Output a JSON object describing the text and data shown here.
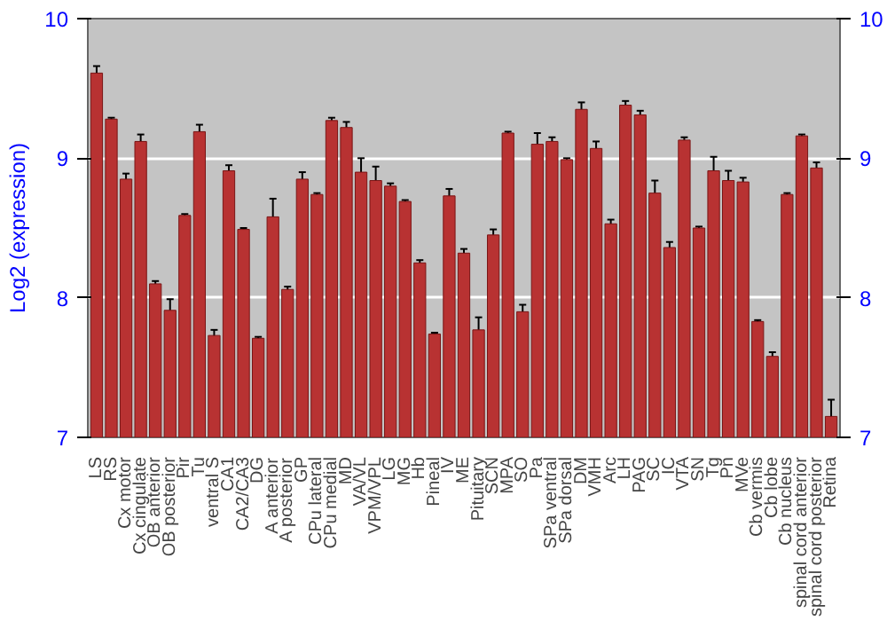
{
  "chart_data": {
    "type": "bar",
    "ylabel": "Log2 (expression)",
    "categories": [
      "LS",
      "RS",
      "Cx motor",
      "Cx cingulate",
      "OB anterior",
      "OB posterior",
      "Pir",
      "Tu",
      "ventral S",
      "CA1",
      "CA2/CA3",
      "DG",
      "A anterior",
      "A posterior",
      "GP",
      "CPu lateral",
      "CPu medial",
      "MD",
      "VA/VL",
      "VPM/VPL",
      "LG",
      "MG",
      "Hb",
      "Pineal",
      "IV",
      "ME",
      "Pituitary",
      "SCN",
      "MPA",
      "SO",
      "Pa",
      "SPa ventral",
      "SPa dorsal",
      "DM",
      "VMH",
      "Arc",
      "LH",
      "PAG",
      "SC",
      "IC",
      "VTA",
      "SN",
      "Tg",
      "Pn",
      "MVe",
      "Cb vermis",
      "Cb lobe",
      "Cb nucleus",
      "spinal cord anterior",
      "spinal cord posterior",
      "Retina"
    ],
    "values": [
      9.61,
      9.28,
      8.85,
      9.12,
      8.1,
      7.91,
      8.59,
      9.19,
      7.73,
      8.91,
      8.49,
      7.71,
      8.58,
      8.06,
      8.85,
      8.74,
      9.27,
      9.22,
      8.9,
      8.84,
      8.8,
      8.69,
      8.25,
      7.74,
      8.73,
      8.32,
      7.77,
      8.45,
      9.18,
      7.9,
      9.1,
      9.12,
      8.99,
      9.35,
      9.07,
      8.53,
      9.38,
      9.31,
      8.75,
      8.36,
      9.13,
      8.5,
      8.91,
      8.84,
      8.83,
      7.83,
      7.58,
      8.74,
      9.16,
      8.93,
      7.15
    ],
    "errors": [
      0.05,
      0.01,
      0.04,
      0.05,
      0.02,
      0.08,
      0.01,
      0.05,
      0.04,
      0.04,
      0.01,
      0.01,
      0.13,
      0.02,
      0.05,
      0.01,
      0.02,
      0.04,
      0.1,
      0.1,
      0.02,
      0.01,
      0.02,
      0.01,
      0.05,
      0.03,
      0.09,
      0.04,
      0.01,
      0.05,
      0.08,
      0.03,
      0.01,
      0.05,
      0.05,
      0.03,
      0.03,
      0.03,
      0.09,
      0.04,
      0.02,
      0.01,
      0.1,
      0.07,
      0.03,
      0.01,
      0.03,
      0.01,
      0.01,
      0.04,
      0.12
    ],
    "color": "#b83232",
    "ylim": [
      7,
      10
    ],
    "yticks": [
      7,
      8,
      9,
      10
    ],
    "y2lim": [
      7,
      10
    ],
    "y2ticks": [
      7,
      8,
      9,
      10
    ],
    "grid": "y"
  }
}
